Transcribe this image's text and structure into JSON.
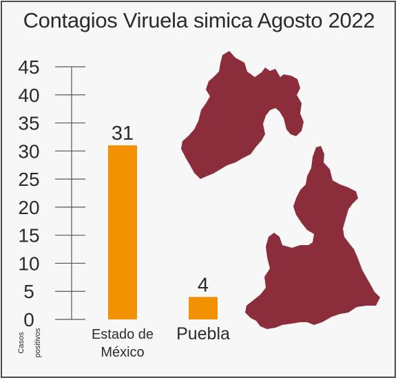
{
  "chart_data": {
    "type": "bar",
    "title": "Contagios Viruela simica Agosto 2022",
    "ylabel": [
      "Casos",
      "positivos"
    ],
    "ylim": [
      0,
      45
    ],
    "yticks": [
      0,
      5,
      10,
      15,
      20,
      25,
      30,
      35,
      40,
      45
    ],
    "categories": [
      [
        "Estado de",
        "México"
      ],
      [
        "Puebla"
      ]
    ],
    "values": [
      31,
      4
    ],
    "data_labels": [
      "31",
      "4"
    ],
    "bar_color": "#f39200",
    "map_color": "#8b2d3b",
    "grid": false
  }
}
